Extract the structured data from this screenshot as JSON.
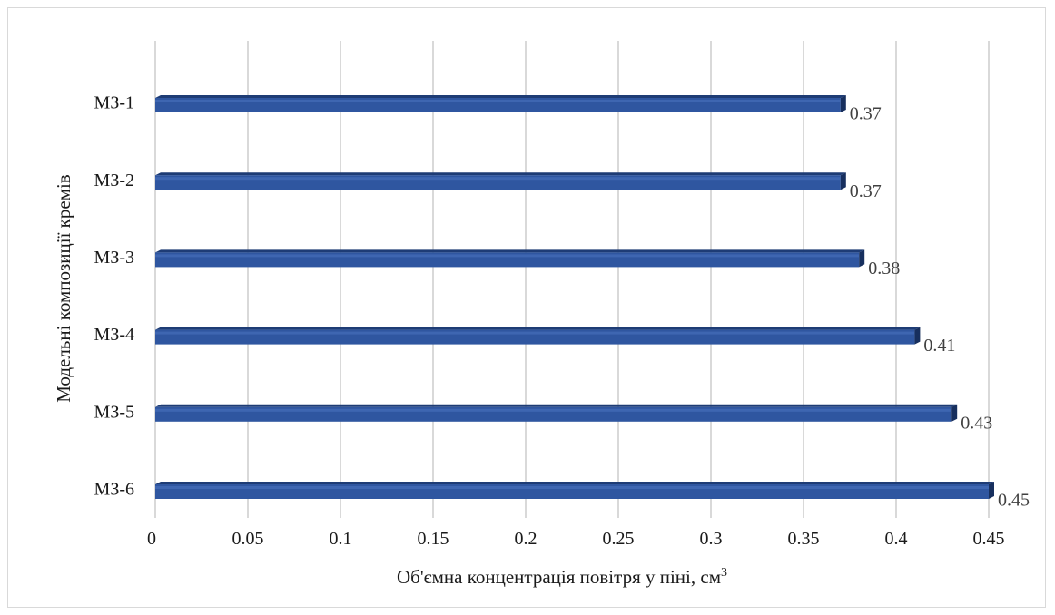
{
  "chart_data": {
    "type": "bar",
    "orientation": "horizontal",
    "categories": [
      "МЗ-1",
      "МЗ-2",
      "МЗ-3",
      "МЗ-4",
      "МЗ-5",
      "МЗ-6"
    ],
    "values": [
      0.37,
      0.37,
      0.38,
      0.41,
      0.43,
      0.45
    ],
    "data_labels": [
      "0.37",
      "0.37",
      "0.38",
      "0.41",
      "0.43",
      "0.45"
    ],
    "xlabel": "Об'ємна концентрація повітря у піні, см",
    "xlabel_superscript": "3",
    "ylabel": "Модельні композиції кремів",
    "xlim": [
      0,
      0.45
    ],
    "xticks": [
      0,
      0.05,
      0.1,
      0.15,
      0.2,
      0.25,
      0.3,
      0.35,
      0.4,
      0.45
    ],
    "xtick_labels": [
      "0",
      "0.05",
      "0.1",
      "0.15",
      "0.2",
      "0.25",
      "0.3",
      "0.35",
      "0.4",
      "0.45"
    ],
    "grid": "vertical",
    "legend": "none",
    "bar_color": "#2F56A0",
    "bar_top_color": "#1E3C75",
    "bar_side_color": "#172F5E",
    "grid_color": "#d9d9d9"
  }
}
